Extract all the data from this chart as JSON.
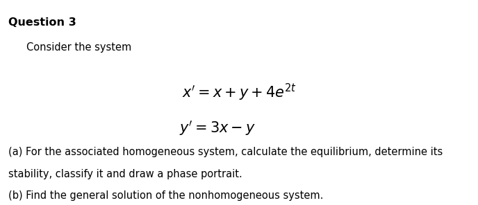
{
  "title": "Question 3",
  "line1": "Consider the system",
  "eq1": "$x' = x + y + 4e^{2t}$",
  "eq2": "$y' = 3x - y$",
  "part_a_line1": "(a) For the associated homogeneous system, calculate the equilibrium, determine its",
  "part_a_line2": "stability, classify it and draw a phase portrait.",
  "part_b": "(b) Find the general solution of the nonhomogeneous system.",
  "bg_color": "#ffffff",
  "text_color": "#000000",
  "title_fontsize": 11.5,
  "body_fontsize": 10.5,
  "eq_fontsize": 15,
  "fig_width": 6.88,
  "fig_height": 2.96,
  "dpi": 100
}
